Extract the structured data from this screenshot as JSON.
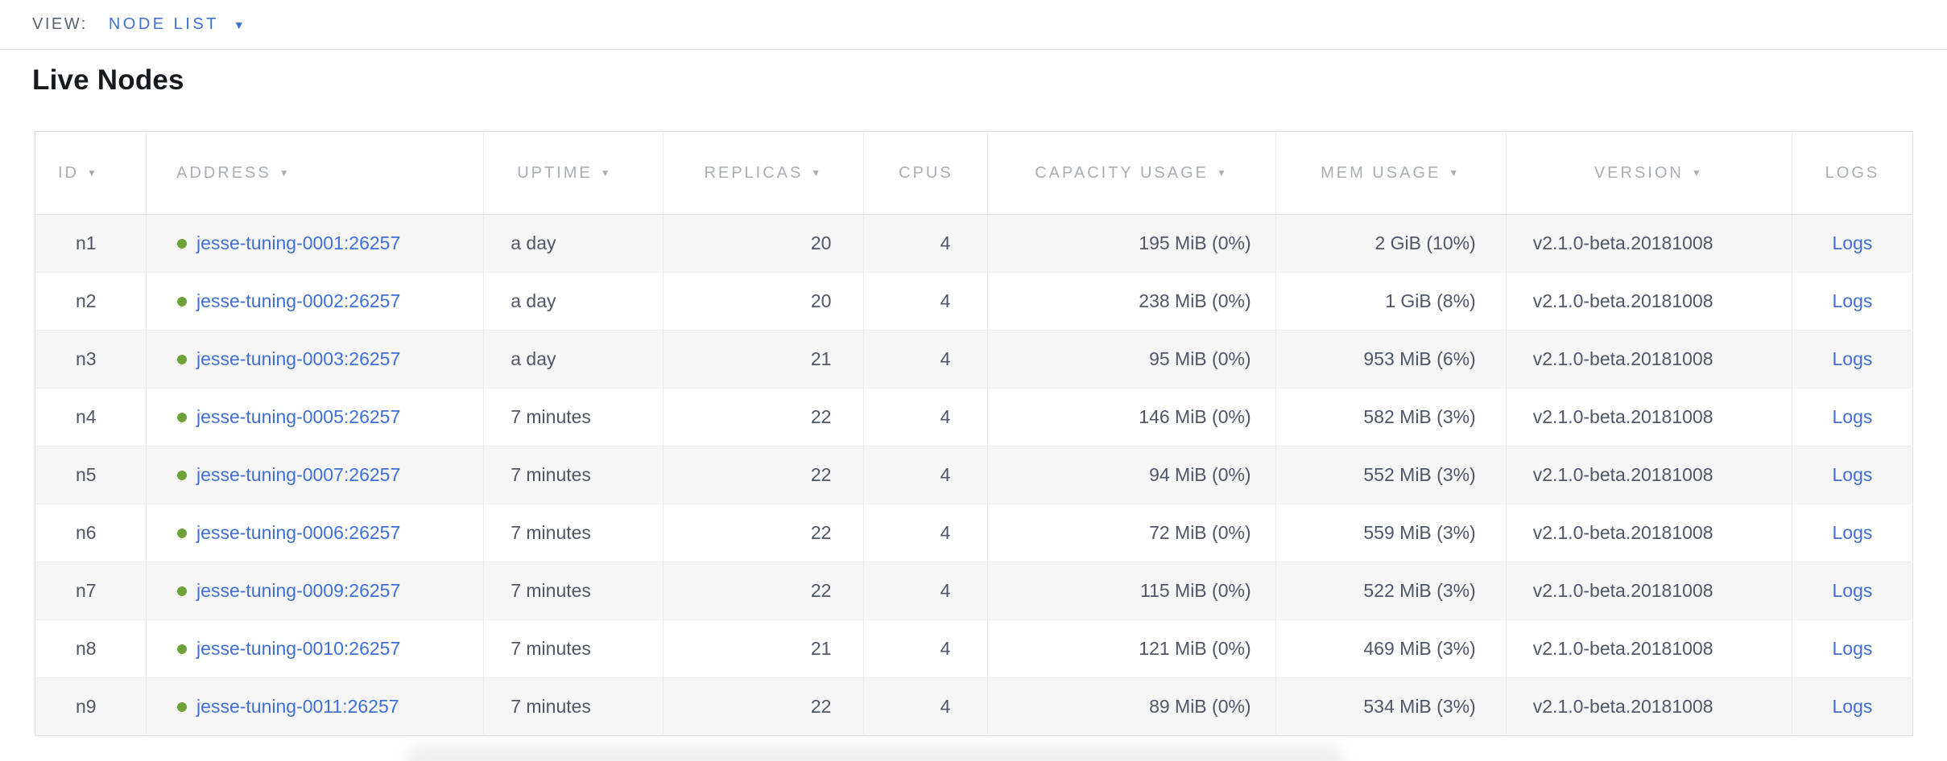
{
  "view_bar": {
    "label": "VIEW:",
    "selected": "NODE LIST"
  },
  "page": {
    "title": "Live Nodes"
  },
  "icons": {
    "chevron_down": "▼",
    "sort_desc": "▼",
    "node_live_dot": "circle"
  },
  "colors": {
    "link_blue": "#3d6fd6",
    "view_link_blue": "#4070d4",
    "status_green": "#6da236",
    "header_text_gray": "#a9aeb5",
    "body_text": "#4e5668",
    "row_stripe": "#f6f6f7",
    "border": "#e2e2e2"
  },
  "table": {
    "columns": [
      {
        "label": "ID",
        "key": "id",
        "sortable": true
      },
      {
        "label": "ADDRESS",
        "key": "address",
        "sortable": true
      },
      {
        "label": "UPTIME",
        "key": "uptime",
        "sortable": true
      },
      {
        "label": "REPLICAS",
        "key": "replicas",
        "sortable": true
      },
      {
        "label": "CPUS",
        "key": "cpus",
        "sortable": false
      },
      {
        "label": "CAPACITY USAGE",
        "key": "capacity",
        "sortable": true
      },
      {
        "label": "MEM USAGE",
        "key": "mem",
        "sortable": true
      },
      {
        "label": "VERSION",
        "key": "version",
        "sortable": true
      },
      {
        "label": "LOGS",
        "key": "logs",
        "sortable": false
      }
    ],
    "rows": [
      {
        "id": "n1",
        "address": "jesse-tuning-0001:26257",
        "uptime": "a day",
        "replicas": "20",
        "cpus": "4",
        "capacity": "195 MiB (0%)",
        "mem": "2 GiB (10%)",
        "version": "v2.1.0-beta.20181008",
        "logs": "Logs"
      },
      {
        "id": "n2",
        "address": "jesse-tuning-0002:26257",
        "uptime": "a day",
        "replicas": "20",
        "cpus": "4",
        "capacity": "238 MiB (0%)",
        "mem": "1 GiB (8%)",
        "version": "v2.1.0-beta.20181008",
        "logs": "Logs"
      },
      {
        "id": "n3",
        "address": "jesse-tuning-0003:26257",
        "uptime": "a day",
        "replicas": "21",
        "cpus": "4",
        "capacity": "95 MiB (0%)",
        "mem": "953 MiB (6%)",
        "version": "v2.1.0-beta.20181008",
        "logs": "Logs"
      },
      {
        "id": "n4",
        "address": "jesse-tuning-0005:26257",
        "uptime": "7 minutes",
        "replicas": "22",
        "cpus": "4",
        "capacity": "146 MiB (0%)",
        "mem": "582 MiB (3%)",
        "version": "v2.1.0-beta.20181008",
        "logs": "Logs"
      },
      {
        "id": "n5",
        "address": "jesse-tuning-0007:26257",
        "uptime": "7 minutes",
        "replicas": "22",
        "cpus": "4",
        "capacity": "94 MiB (0%)",
        "mem": "552 MiB (3%)",
        "version": "v2.1.0-beta.20181008",
        "logs": "Logs"
      },
      {
        "id": "n6",
        "address": "jesse-tuning-0006:26257",
        "uptime": "7 minutes",
        "replicas": "22",
        "cpus": "4",
        "capacity": "72 MiB (0%)",
        "mem": "559 MiB (3%)",
        "version": "v2.1.0-beta.20181008",
        "logs": "Logs"
      },
      {
        "id": "n7",
        "address": "jesse-tuning-0009:26257",
        "uptime": "7 minutes",
        "replicas": "22",
        "cpus": "4",
        "capacity": "115 MiB (0%)",
        "mem": "522 MiB (3%)",
        "version": "v2.1.0-beta.20181008",
        "logs": "Logs"
      },
      {
        "id": "n8",
        "address": "jesse-tuning-0010:26257",
        "uptime": "7 minutes",
        "replicas": "21",
        "cpus": "4",
        "capacity": "121 MiB (0%)",
        "mem": "469 MiB (3%)",
        "version": "v2.1.0-beta.20181008",
        "logs": "Logs"
      },
      {
        "id": "n9",
        "address": "jesse-tuning-0011:26257",
        "uptime": "7 minutes",
        "replicas": "22",
        "cpus": "4",
        "capacity": "89 MiB (0%)",
        "mem": "534 MiB (3%)",
        "version": "v2.1.0-beta.20181008",
        "logs": "Logs"
      }
    ]
  }
}
